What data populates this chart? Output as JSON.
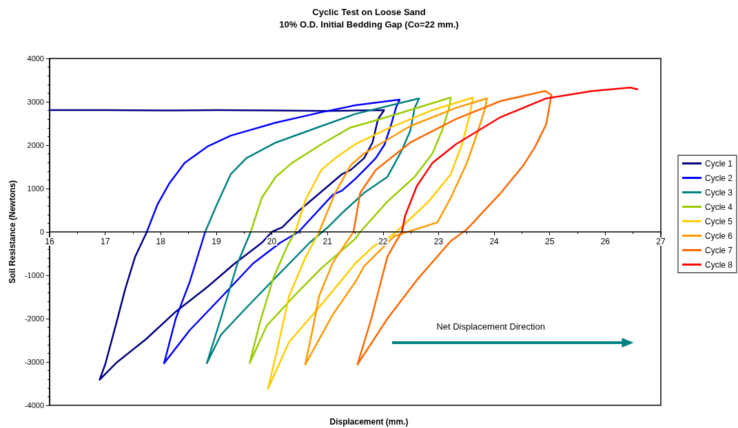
{
  "chart_data": {
    "type": "line",
    "title": "Cyclic Test on Loose Sand",
    "subtitle": "10% O.D. Initial Bedding Gap (Co=22 mm.)",
    "xlabel": "Displacement (mm.)",
    "ylabel": "Soil Resistance (Newtons)",
    "annotations": [
      "Net Displacement Direction"
    ],
    "xlim": [
      16,
      27
    ],
    "ylim": [
      -4000,
      4000
    ],
    "xticks": [
      16,
      17,
      18,
      19,
      20,
      21,
      22,
      23,
      24,
      25,
      26,
      27
    ],
    "yticks": [
      -4000,
      -3000,
      -2000,
      -1000,
      0,
      1000,
      2000,
      3000,
      4000
    ],
    "grid": false,
    "legend": "right",
    "marker": "none",
    "line_style": "solid",
    "series": [
      {
        "name": "Cycle 1",
        "color": "#000080",
        "x": [
          16,
          17,
          18,
          19,
          20,
          21,
          21.5,
          22.02,
          21.91,
          21.87,
          21.81,
          21.66,
          21.42,
          21.26,
          20.48,
          20.19,
          20.0,
          19.82,
          19.33,
          18.84,
          18.27,
          17.73,
          17.2,
          16.9,
          17.0,
          17.2,
          17.36,
          17.54,
          17.75
        ],
        "values": [
          2810,
          2810,
          2800,
          2810,
          2800,
          2790,
          2800,
          2810,
          2600,
          2380,
          2060,
          1700,
          1430,
          1330,
          480,
          110,
          0,
          -250,
          -730,
          -1270,
          -1840,
          -2480,
          -3020,
          -3410,
          -3060,
          -2110,
          -1320,
          -570,
          0
        ]
      },
      {
        "name": "Cycle 2",
        "color": "#0000ff",
        "x": [
          17.75,
          17.94,
          18.15,
          18.43,
          18.84,
          19.26,
          20.07,
          20.89,
          21.5,
          22.3,
          22.24,
          22.15,
          22.03,
          21.87,
          21.71,
          21.5,
          21.26,
          21.1,
          20.48,
          20.15,
          19.66,
          19.08,
          18.52,
          18.06,
          18.27,
          18.52,
          18.8
        ],
        "values": [
          0,
          630,
          1110,
          1590,
          1970,
          2220,
          2520,
          2760,
          2920,
          3050,
          2890,
          2490,
          2020,
          1700,
          1490,
          1220,
          950,
          860,
          0,
          -250,
          -730,
          -1520,
          -2270,
          -3030,
          -2000,
          -1160,
          0
        ]
      },
      {
        "name": "Cycle 3",
        "color": "#008080",
        "x": [
          18.8,
          19.01,
          19.26,
          19.54,
          20.07,
          20.89,
          21.5,
          22.65,
          22.57,
          22.49,
          22.33,
          22.08,
          21.66,
          21.26,
          21.01,
          20.68,
          20.07,
          19.54,
          19.08,
          18.83,
          19.08,
          19.38,
          19.62
        ],
        "values": [
          0,
          630,
          1330,
          1700,
          2060,
          2440,
          2720,
          3080,
          2860,
          2330,
          1860,
          1270,
          900,
          430,
          110,
          -250,
          -1050,
          -1750,
          -2380,
          -3030,
          -2000,
          -730,
          0
        ]
      },
      {
        "name": "Cycle 4",
        "color": "#99cc00",
        "x": [
          19.62,
          19.82,
          20.07,
          20.36,
          20.89,
          21.4,
          22.08,
          23.22,
          23.19,
          23.06,
          22.89,
          22.57,
          22.08,
          21.59,
          21.5,
          20.89,
          20.4,
          19.91,
          19.6,
          19.78,
          20.03,
          20.28,
          20.42
        ],
        "values": [
          0,
          790,
          1270,
          1590,
          2020,
          2400,
          2650,
          3100,
          2860,
          2330,
          1810,
          1270,
          700,
          0,
          -160,
          -840,
          -1480,
          -2160,
          -3030,
          -2110,
          -1050,
          -320,
          0
        ]
      },
      {
        "name": "Cycle 5",
        "color": "#ffcc00",
        "x": [
          20.42,
          20.61,
          20.89,
          21.14,
          21.5,
          22.08,
          22.89,
          23.62,
          23.56,
          23.43,
          23.22,
          22.82,
          22.24,
          22.08,
          21.84,
          21.5,
          20.89,
          20.31,
          19.93,
          20.07,
          20.31,
          20.6,
          20.85
        ],
        "values": [
          0,
          750,
          1430,
          1700,
          2020,
          2380,
          2810,
          3100,
          2700,
          2060,
          1330,
          700,
          0,
          -160,
          -320,
          -730,
          -1680,
          -2540,
          -3620,
          -2860,
          -1480,
          -600,
          0
        ]
      },
      {
        "name": "Cycle 6",
        "color": "#ff9900",
        "x": [
          20.85,
          21.14,
          21.42,
          21.66,
          22.49,
          23.31,
          23.87,
          23.84,
          23.71,
          23.51,
          23.22,
          22.98,
          22.2,
          21.66,
          21.5,
          21.1,
          20.6,
          20.73,
          20.85,
          21.1,
          21.47
        ],
        "values": [
          0,
          900,
          1540,
          1810,
          2440,
          2860,
          3080,
          2860,
          2330,
          1590,
          790,
          220,
          -100,
          -790,
          -1160,
          -1900,
          -3060,
          -2270,
          -1480,
          -700,
          0
        ]
      },
      {
        "name": "Cycle 7",
        "color": "#ff6600",
        "x": [
          21.47,
          21.59,
          21.87,
          22.49,
          23.31,
          24.12,
          24.92,
          25.03,
          24.94,
          24.74,
          24.53,
          24.12,
          23.51,
          23.22,
          22.61,
          22.08,
          21.54,
          21.79,
          22.08,
          22.24,
          22.34
        ],
        "values": [
          0,
          900,
          1430,
          2060,
          2600,
          3020,
          3250,
          3160,
          2490,
          1970,
          1540,
          900,
          60,
          -210,
          -1110,
          -2000,
          -3060,
          -2000,
          -570,
          -210,
          0
        ]
      },
      {
        "name": "Cycle 8",
        "color": "#ff0000",
        "x": [
          22.34,
          22.4,
          22.61,
          22.89,
          23.31,
          24.12,
          24.94,
          25.77,
          26.45,
          26.58
        ],
        "values": [
          0,
          380,
          1060,
          1590,
          2020,
          2650,
          3080,
          3250,
          3330,
          3290
        ]
      }
    ]
  }
}
